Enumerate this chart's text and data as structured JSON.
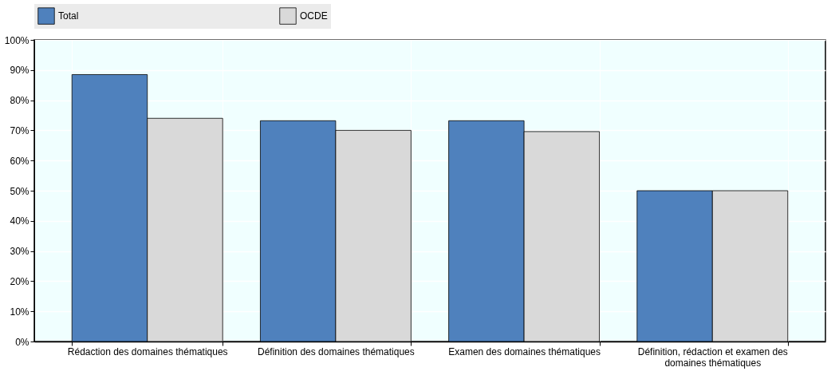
{
  "chart_data": {
    "type": "bar",
    "categories": [
      "Rédaction des domaines thématiques",
      "Définition des domaines thématiques",
      "Examen des domaines thématiques",
      "Définition, rédaction et examen des domaines thématiques"
    ],
    "series": [
      {
        "name": "Total",
        "color": "#4f81bd",
        "values": [
          88.5,
          73.2,
          73.2,
          50
        ]
      },
      {
        "name": "OCDE",
        "color": "#d9d9d9",
        "values": [
          74,
          70,
          69.6,
          50
        ]
      }
    ],
    "ylim": [
      0,
      100
    ],
    "yticks": [
      {
        "value": 0,
        "label": "0%"
      },
      {
        "value": 10,
        "label": "10%"
      },
      {
        "value": 20,
        "label": "20%"
      },
      {
        "value": 30,
        "label": "30%"
      },
      {
        "value": 40,
        "label": "40%"
      },
      {
        "value": 50,
        "label": "50%"
      },
      {
        "value": 60,
        "label": "60%"
      },
      {
        "value": 70,
        "label": "70%"
      },
      {
        "value": 80,
        "label": "80%"
      },
      {
        "value": 90,
        "label": "90%"
      },
      {
        "value": 100,
        "label": "100%"
      }
    ],
    "grid": true,
    "legend": "top"
  }
}
